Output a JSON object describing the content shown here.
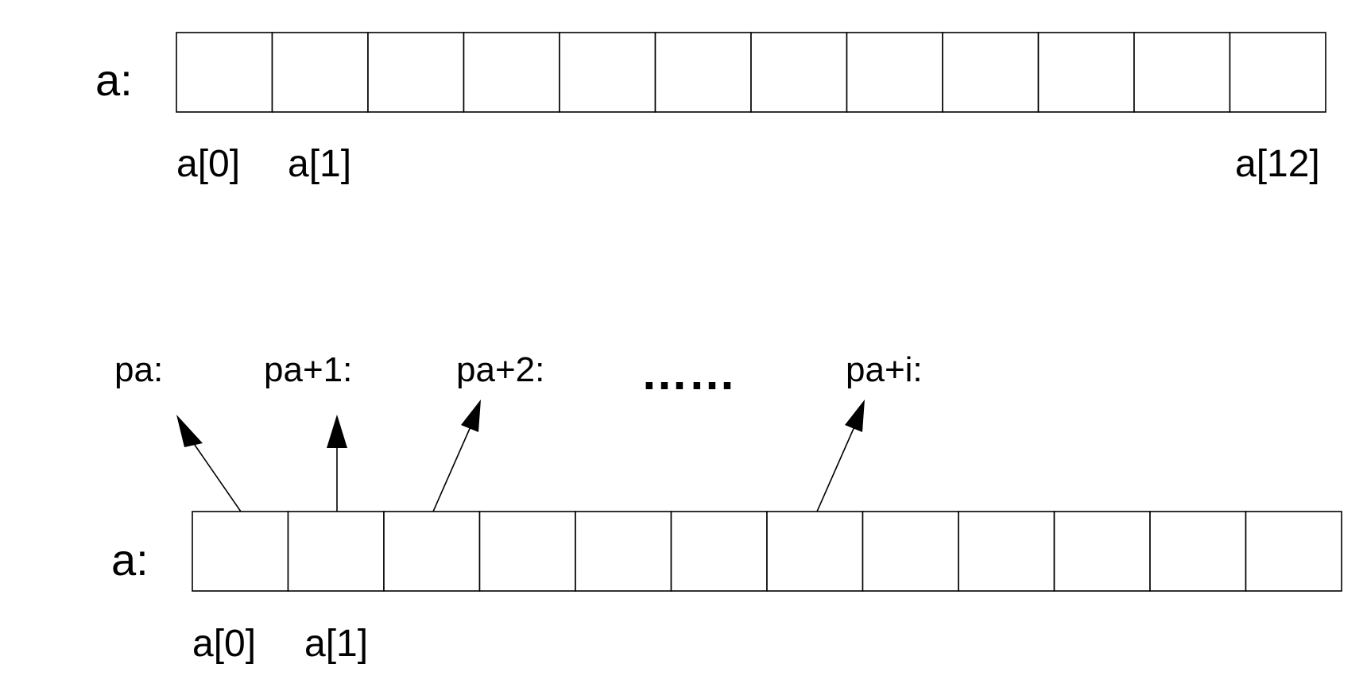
{
  "top_array": {
    "label": "a:",
    "cell_count": 12,
    "index_labels": [
      "a[0]",
      "a[1]",
      "a[12]"
    ]
  },
  "bottom_array": {
    "label": "a:",
    "cell_count": 12,
    "index_labels": [
      "a[0]",
      "a[1]"
    ]
  },
  "pointers": {
    "labels": [
      "pa:",
      "pa+1:",
      "pa+2:",
      "pa+i:"
    ],
    "ellipsis": "……"
  },
  "colors": {
    "stroke": "#000000",
    "background": "#ffffff"
  }
}
